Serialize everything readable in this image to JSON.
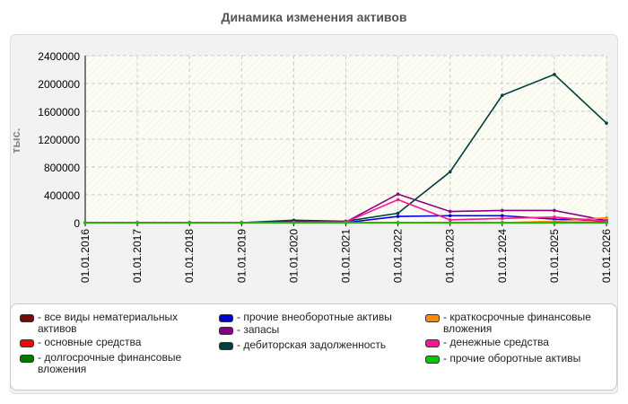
{
  "title": "Динамика изменения активов",
  "chart_data": {
    "type": "line",
    "title": "Динамика изменения активов",
    "ylabel": "тыс.",
    "xlabel": "",
    "ylim": [
      0,
      2400000
    ],
    "yticks": [
      "0",
      "400000",
      "800000",
      "1200000",
      "1600000",
      "2000000",
      "2400000"
    ],
    "categories": [
      "01.01.2016",
      "01.01.2017",
      "01.01.2018",
      "01.01.2019",
      "01.01.2020",
      "01.01.2021",
      "01.01.2022",
      "01.01.2023",
      "01.01.2024",
      "01.01.2025",
      "01.01.2026"
    ],
    "grid": true,
    "legend_position": "bottom",
    "series": [
      {
        "name": "- все виды нематериальных активов",
        "color": "#7a0a0a",
        "values": [
          0,
          0,
          0,
          0,
          0,
          0,
          0,
          0,
          0,
          0,
          0
        ]
      },
      {
        "name": "- основные средства",
        "color": "#ff0000",
        "values": [
          0,
          0,
          0,
          0,
          0,
          0,
          0,
          0,
          0,
          5000,
          10000
        ]
      },
      {
        "name": "- долгосрочные финансовые вложения",
        "color": "#007700",
        "values": [
          0,
          0,
          0,
          0,
          0,
          0,
          0,
          0,
          0,
          0,
          0
        ]
      },
      {
        "name": "- прочие внеоборотные активы",
        "color": "#0000dd",
        "values": [
          0,
          0,
          0,
          0,
          0,
          0,
          90000,
          100000,
          100000,
          50000,
          30000
        ]
      },
      {
        "name": "- запасы",
        "color": "#880088",
        "values": [
          0,
          0,
          0,
          0,
          20000,
          10000,
          410000,
          160000,
          175000,
          175000,
          30000
        ]
      },
      {
        "name": "- дебиторская задолженность",
        "color": "#004040",
        "values": [
          0,
          0,
          0,
          0,
          35000,
          20000,
          135000,
          730000,
          1830000,
          2130000,
          1430000
        ]
      },
      {
        "name": "- краткосрочные финансовые вложения",
        "color": "#ff8800",
        "values": [
          0,
          0,
          0,
          0,
          0,
          0,
          0,
          0,
          0,
          20000,
          70000
        ]
      },
      {
        "name": "- денежные средства",
        "color": "#ff1493",
        "values": [
          0,
          0,
          0,
          0,
          5000,
          10000,
          330000,
          40000,
          60000,
          80000,
          20000
        ]
      },
      {
        "name": "- прочие оборотные активы",
        "color": "#00cc00",
        "values": [
          0,
          0,
          0,
          0,
          0,
          0,
          0,
          0,
          0,
          0,
          0
        ]
      }
    ]
  }
}
